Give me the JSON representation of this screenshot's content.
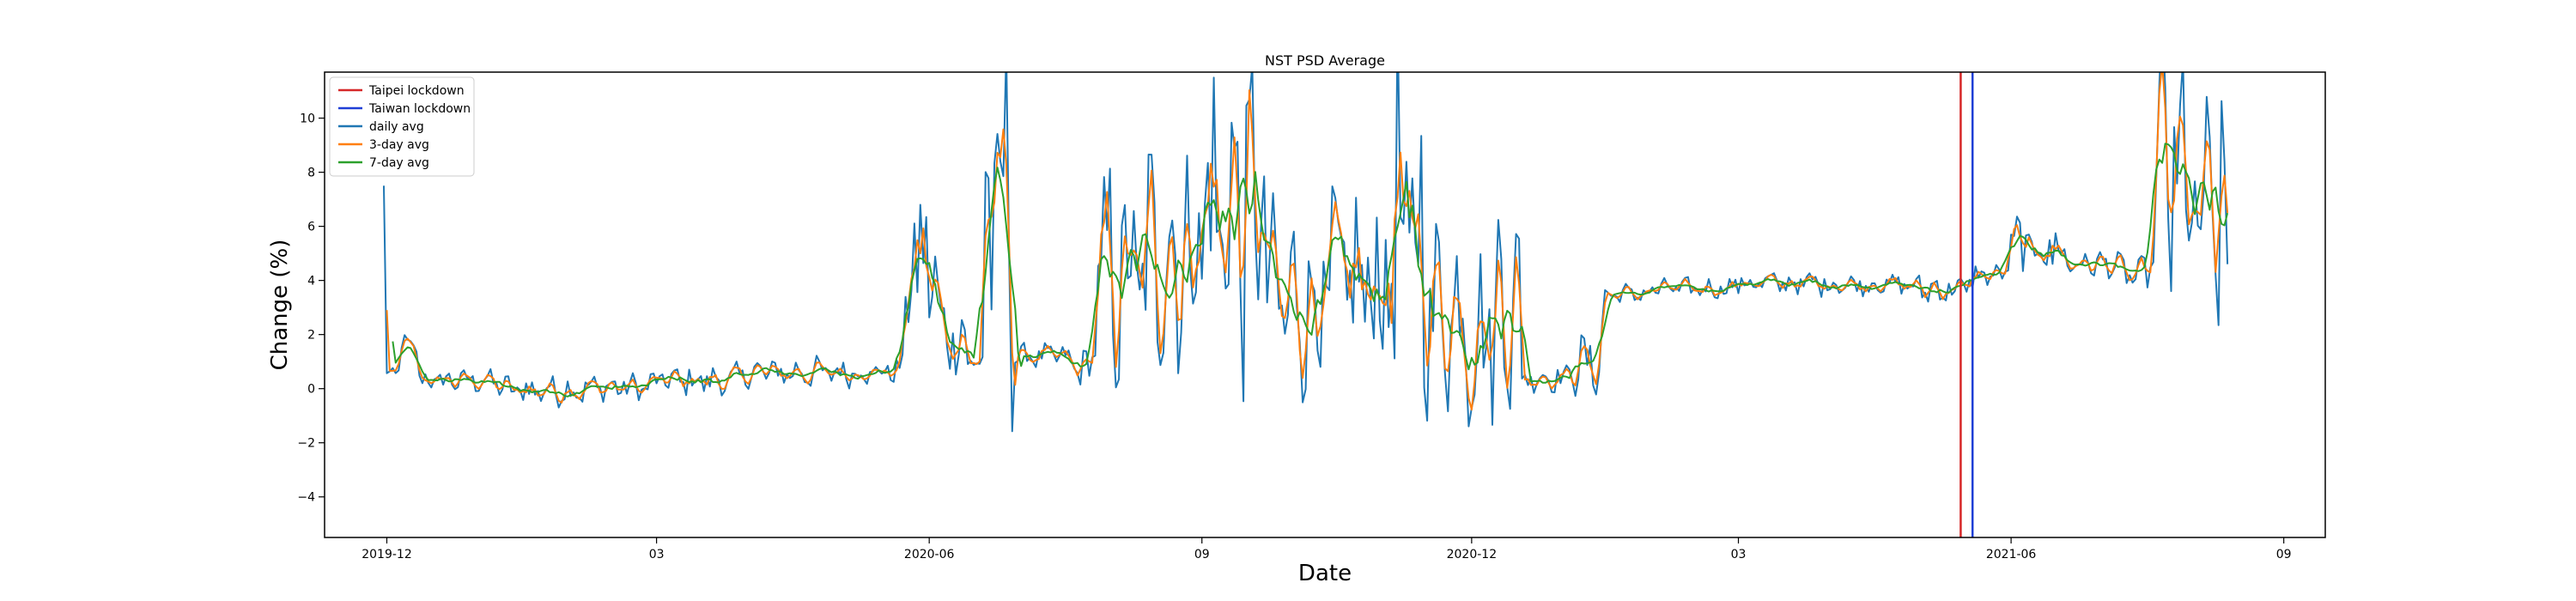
{
  "chart_data": {
    "type": "line",
    "title": "NST PSD Average",
    "xlabel": "Date",
    "ylabel": "Change (%)",
    "x_start": "2019-11-30",
    "x_end": "2021-08-13",
    "xlim": [
      "2019-11-10",
      "2021-09-15"
    ],
    "ylim": [
      -5.5,
      11.7
    ],
    "x_ticks": [
      {
        "date": "2019-12-01",
        "label": "2019-12"
      },
      {
        "date": "2020-03-01",
        "label": "03"
      },
      {
        "date": "2020-06-01",
        "label": "2020-06"
      },
      {
        "date": "2020-09-01",
        "label": "09"
      },
      {
        "date": "2020-12-01",
        "label": "2020-12"
      },
      {
        "date": "2021-03-01",
        "label": "03"
      },
      {
        "date": "2021-06-01",
        "label": "2021-06"
      },
      {
        "date": "2021-09-01",
        "label": "09"
      }
    ],
    "y_ticks": [
      -4,
      -2,
      0,
      2,
      4,
      6,
      8,
      10
    ],
    "grid": false,
    "legend_position": "top-left",
    "vlines": [
      {
        "name": "Taipei lockdown",
        "date": "2021-05-15",
        "color": "#d62728"
      },
      {
        "name": "Taiwan lockdown",
        "date": "2021-05-19",
        "color": "#1f3fd6"
      }
    ],
    "series": [
      {
        "name": "daily avg",
        "color": "#1f77b4"
      },
      {
        "name": "3-day avg",
        "color": "#ff7f0e"
      },
      {
        "name": "7-day avg",
        "color": "#2ca02c"
      }
    ],
    "segments": [
      {
        "start": "2019-11-30",
        "level": 7.5,
        "amp": 0.0
      },
      {
        "start": "2019-12-01",
        "level": 0.6,
        "amp": 0.3
      },
      {
        "start": "2019-12-06",
        "level": 1.6,
        "amp": 0.3
      },
      {
        "start": "2019-12-12",
        "level": 0.3,
        "amp": 0.35
      },
      {
        "start": "2020-01-10",
        "level": -0.05,
        "amp": 0.45
      },
      {
        "start": "2020-02-10",
        "level": 0.05,
        "amp": 0.4
      },
      {
        "start": "2020-03-01",
        "level": 0.3,
        "amp": 0.45
      },
      {
        "start": "2020-04-01",
        "level": 0.6,
        "amp": 0.45
      },
      {
        "start": "2020-05-01",
        "level": 0.6,
        "amp": 0.4
      },
      {
        "start": "2020-05-20",
        "level": 0.7,
        "amp": 0.4
      },
      {
        "start": "2020-05-24",
        "level": 4.5,
        "amp": 2.5
      },
      {
        "start": "2020-06-05",
        "level": 2.0,
        "amp": 1.2
      },
      {
        "start": "2020-06-14",
        "level": 1.0,
        "amp": 0.5
      },
      {
        "start": "2020-06-20",
        "level": 6.5,
        "amp": 5.0
      },
      {
        "start": "2020-06-30",
        "level": 1.2,
        "amp": 0.35
      },
      {
        "start": "2020-07-20",
        "level": 0.8,
        "amp": 0.6
      },
      {
        "start": "2020-07-27",
        "level": 4.0,
        "amp": 3.5
      },
      {
        "start": "2020-08-15",
        "level": 5.0,
        "amp": 3.5
      },
      {
        "start": "2020-09-01",
        "level": 6.5,
        "amp": 5.0
      },
      {
        "start": "2020-09-25",
        "level": 3.2,
        "amp": 2.8
      },
      {
        "start": "2020-10-15",
        "level": 3.8,
        "amp": 3.0
      },
      {
        "start": "2020-11-05",
        "level": 5.0,
        "amp": 6.5
      },
      {
        "start": "2020-11-15",
        "level": 3.0,
        "amp": 3.0
      },
      {
        "start": "2020-12-01",
        "level": 2.0,
        "amp": 2.5
      },
      {
        "start": "2020-12-10",
        "level": 3.5,
        "amp": 4.0
      },
      {
        "start": "2020-12-18",
        "level": 0.4,
        "amp": 0.4
      },
      {
        "start": "2021-01-05",
        "level": 0.9,
        "amp": 0.9
      },
      {
        "start": "2021-01-15",
        "level": 3.5,
        "amp": 0.3
      },
      {
        "start": "2021-02-01",
        "level": 3.7,
        "amp": 0.3
      },
      {
        "start": "2021-03-01",
        "level": 3.9,
        "amp": 0.35
      },
      {
        "start": "2021-04-01",
        "level": 3.85,
        "amp": 0.3
      },
      {
        "start": "2021-05-01",
        "level": 3.7,
        "amp": 0.5
      },
      {
        "start": "2021-05-20",
        "level": 4.2,
        "amp": 0.3
      },
      {
        "start": "2021-06-01",
        "level": 5.2,
        "amp": 1.0
      },
      {
        "start": "2021-06-20",
        "level": 4.6,
        "amp": 0.4
      },
      {
        "start": "2021-07-10",
        "level": 4.2,
        "amp": 0.5
      },
      {
        "start": "2021-07-20",
        "level": 7.5,
        "amp": 5.0
      },
      {
        "start": "2021-08-01",
        "level": 6.0,
        "amp": 4.0
      },
      {
        "start": "2021-08-13",
        "level": 4.6,
        "amp": 0.0
      }
    ]
  }
}
